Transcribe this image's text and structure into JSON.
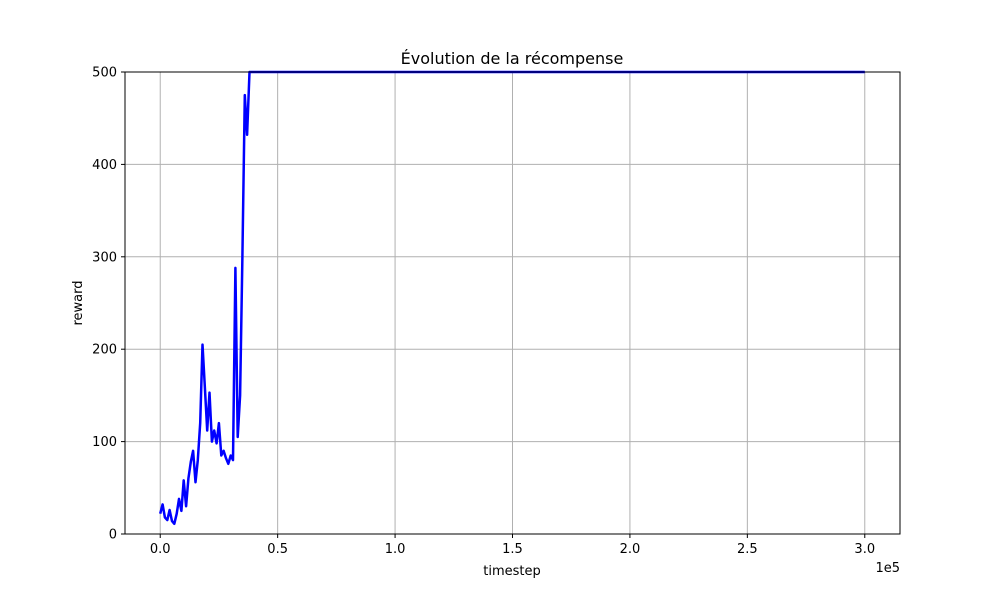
{
  "chart_data": {
    "type": "line",
    "title": "Évolution de la récompense",
    "xlabel": "timestep",
    "ylabel": "reward",
    "x_offset_text": "1e5",
    "xlim": [
      -0.15,
      3.15
    ],
    "ylim": [
      0,
      500
    ],
    "x_ticks": [
      0.0,
      0.5,
      1.0,
      1.5,
      2.0,
      2.5,
      3.0
    ],
    "x_tick_labels": [
      "0.0",
      "0.5",
      "1.0",
      "1.5",
      "2.0",
      "2.5",
      "3.0"
    ],
    "y_ticks": [
      0,
      100,
      200,
      300,
      400,
      500
    ],
    "y_tick_labels": [
      "0",
      "100",
      "200",
      "300",
      "400",
      "500"
    ],
    "grid": true,
    "series": [
      {
        "color": "#0000ff",
        "x": [
          0.0,
          0.01,
          0.02,
          0.03,
          0.04,
          0.05,
          0.06,
          0.07,
          0.08,
          0.09,
          0.1,
          0.11,
          0.12,
          0.13,
          0.14,
          0.15,
          0.16,
          0.17,
          0.18,
          0.19,
          0.2,
          0.21,
          0.22,
          0.23,
          0.24,
          0.25,
          0.26,
          0.27,
          0.28,
          0.29,
          0.3,
          0.31,
          0.32,
          0.33,
          0.34,
          0.35,
          0.36,
          0.37,
          0.38,
          0.39,
          0.4,
          0.41,
          0.42,
          0.43,
          0.44,
          0.45,
          0.46,
          0.47,
          0.475,
          0.48,
          0.49,
          0.5,
          1.0,
          2.0,
          2.5,
          2.52,
          2.53,
          2.54,
          2.55,
          2.56,
          2.57,
          2.58,
          2.59,
          2.6,
          2.61,
          2.62,
          2.63,
          2.64,
          2.65,
          2.66,
          2.67,
          2.68,
          2.69,
          2.7,
          2.71,
          2.72,
          2.74,
          2.76,
          2.78,
          2.8,
          2.85,
          2.9,
          2.95,
          3.0
        ],
        "y": [
          22,
          32,
          18,
          15,
          26,
          14,
          11,
          22,
          38,
          25,
          58,
          30,
          60,
          78,
          90,
          56,
          80,
          120,
          205,
          160,
          112,
          153,
          100,
          112,
          98,
          120,
          85,
          90,
          82,
          76,
          85,
          80,
          288,
          105,
          150,
          300,
          475,
          432,
          500,
          500,
          500,
          500,
          500,
          500,
          500,
          500,
          500,
          500,
          500,
          500,
          500,
          500,
          500,
          500,
          500,
          500,
          500,
          500,
          500,
          500,
          500,
          500,
          500,
          500,
          500,
          500,
          500,
          500,
          500,
          500,
          500,
          500,
          500,
          500,
          500,
          500,
          500,
          500,
          500,
          500,
          500,
          500,
          500,
          500
        ]
      }
    ]
  }
}
